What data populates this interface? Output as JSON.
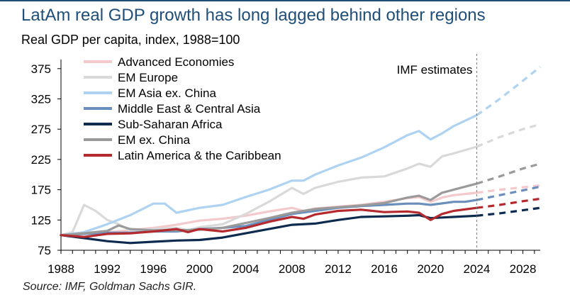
{
  "title": "LatAm real GDP growth has long lagged behind other regions",
  "subtitle": "Real GDP per capita, index, 1988=100",
  "source": "Source: IMF, Goldman Sachs GIR.",
  "colors": {
    "title": "#1f4e79",
    "top_rule": "#1f4e79"
  },
  "chart_data": {
    "type": "line",
    "ylim": [
      75,
      390
    ],
    "xlim": [
      1988,
      2029.5
    ],
    "yticks": [
      75,
      125,
      175,
      225,
      275,
      325,
      375
    ],
    "xticks": [
      1988,
      1992,
      1996,
      2000,
      2004,
      2008,
      2012,
      2016,
      2020,
      2024,
      2028
    ],
    "grid": false,
    "legend_position": "top-left",
    "annotations": [
      {
        "text": "IMF estimates",
        "x": 2024,
        "style": "dashed vertical line"
      }
    ],
    "forecast_start": 2024,
    "series": [
      {
        "name": "Advanced Economies",
        "color": "#f4c9cc",
        "x": [
          1988,
          1990,
          1992,
          1994,
          1996,
          1998,
          2000,
          2002,
          2004,
          2006,
          2008,
          2009,
          2010,
          2012,
          2014,
          2016,
          2018,
          2019,
          2020,
          2021,
          2022,
          2024,
          2026,
          2028,
          2029.5
        ],
        "values": [
          100,
          104,
          105,
          108,
          112,
          117,
          124,
          127,
          132,
          139,
          145,
          140,
          144,
          147,
          150,
          155,
          161,
          163,
          155,
          162,
          166,
          170,
          175,
          179,
          182
        ]
      },
      {
        "name": "EM Europe",
        "color": "#d9d9d9",
        "x": [
          1988,
          1989,
          1990,
          1991,
          1992,
          1993,
          1994,
          1996,
          1998,
          1999,
          2000,
          2002,
          2004,
          2006,
          2008,
          2009,
          2010,
          2012,
          2014,
          2016,
          2018,
          2019,
          2020,
          2021,
          2022,
          2024,
          2026,
          2028,
          2029.5
        ],
        "values": [
          100,
          105,
          150,
          140,
          125,
          118,
          108,
          110,
          112,
          108,
          113,
          118,
          135,
          155,
          178,
          168,
          178,
          188,
          195,
          197,
          210,
          218,
          213,
          230,
          235,
          246,
          262,
          275,
          283
        ]
      },
      {
        "name": "EM Asia ex. China",
        "color": "#aed3f2",
        "x": [
          1988,
          1990,
          1992,
          1994,
          1996,
          1997,
          1998,
          2000,
          2002,
          2004,
          2006,
          2008,
          2009,
          2010,
          2012,
          2014,
          2016,
          2018,
          2019,
          2020,
          2021,
          2022,
          2024,
          2026,
          2028,
          2029.5
        ],
        "values": [
          100,
          105,
          118,
          133,
          152,
          152,
          137,
          145,
          150,
          163,
          175,
          190,
          190,
          200,
          215,
          228,
          245,
          265,
          272,
          258,
          268,
          280,
          298,
          325,
          355,
          378
        ]
      },
      {
        "name": "Middle East & Central Asia",
        "color": "#6a8fbd",
        "x": [
          1988,
          1990,
          1992,
          1994,
          1996,
          1998,
          2000,
          2002,
          2004,
          2006,
          2008,
          2010,
          2012,
          2014,
          2016,
          2018,
          2019,
          2020,
          2022,
          2023,
          2024,
          2026,
          2028,
          2029.5
        ],
        "values": [
          100,
          102,
          104,
          104,
          106,
          106,
          110,
          112,
          115,
          125,
          135,
          140,
          145,
          148,
          150,
          152,
          152,
          150,
          155,
          155,
          158,
          166,
          174,
          180
        ]
      },
      {
        "name": "Sub-Saharan Africa",
        "color": "#0d2a4f",
        "x": [
          1988,
          1990,
          1992,
          1994,
          1996,
          1998,
          2000,
          2002,
          2004,
          2006,
          2008,
          2010,
          2012,
          2014,
          2016,
          2018,
          2019,
          2020,
          2022,
          2024,
          2026,
          2028,
          2029.5
        ],
        "values": [
          100,
          95,
          90,
          87,
          89,
          91,
          92,
          96,
          103,
          110,
          117,
          119,
          125,
          130,
          131,
          132,
          133,
          128,
          130,
          132,
          136,
          141,
          145
        ]
      },
      {
        "name": "EM ex. China",
        "color": "#9a9a9a",
        "x": [
          1988,
          1990,
          1991,
          1992,
          1993,
          1994,
          1996,
          1998,
          2000,
          2002,
          2004,
          2006,
          2008,
          2010,
          2012,
          2014,
          2016,
          2018,
          2019,
          2020,
          2021,
          2022,
          2024,
          2026,
          2028,
          2029.5
        ],
        "values": [
          100,
          103,
          105,
          107,
          116,
          110,
          108,
          108,
          109,
          112,
          120,
          128,
          137,
          143,
          146,
          149,
          153,
          162,
          165,
          158,
          170,
          175,
          185,
          197,
          210,
          218
        ]
      },
      {
        "name": "Latin America & the Caribbean",
        "color": "#b52a2e",
        "x": [
          1988,
          1990,
          1992,
          1994,
          1996,
          1998,
          1999,
          2000,
          2002,
          2004,
          2006,
          2008,
          2009,
          2010,
          2012,
          2014,
          2016,
          2018,
          2019,
          2020,
          2021,
          2022,
          2024,
          2026,
          2028,
          2029.5
        ],
        "values": [
          100,
          97,
          102,
          103,
          106,
          110,
          105,
          110,
          106,
          112,
          122,
          130,
          127,
          134,
          140,
          142,
          138,
          139,
          137,
          125,
          135,
          140,
          145,
          150,
          156,
          160
        ]
      }
    ]
  }
}
